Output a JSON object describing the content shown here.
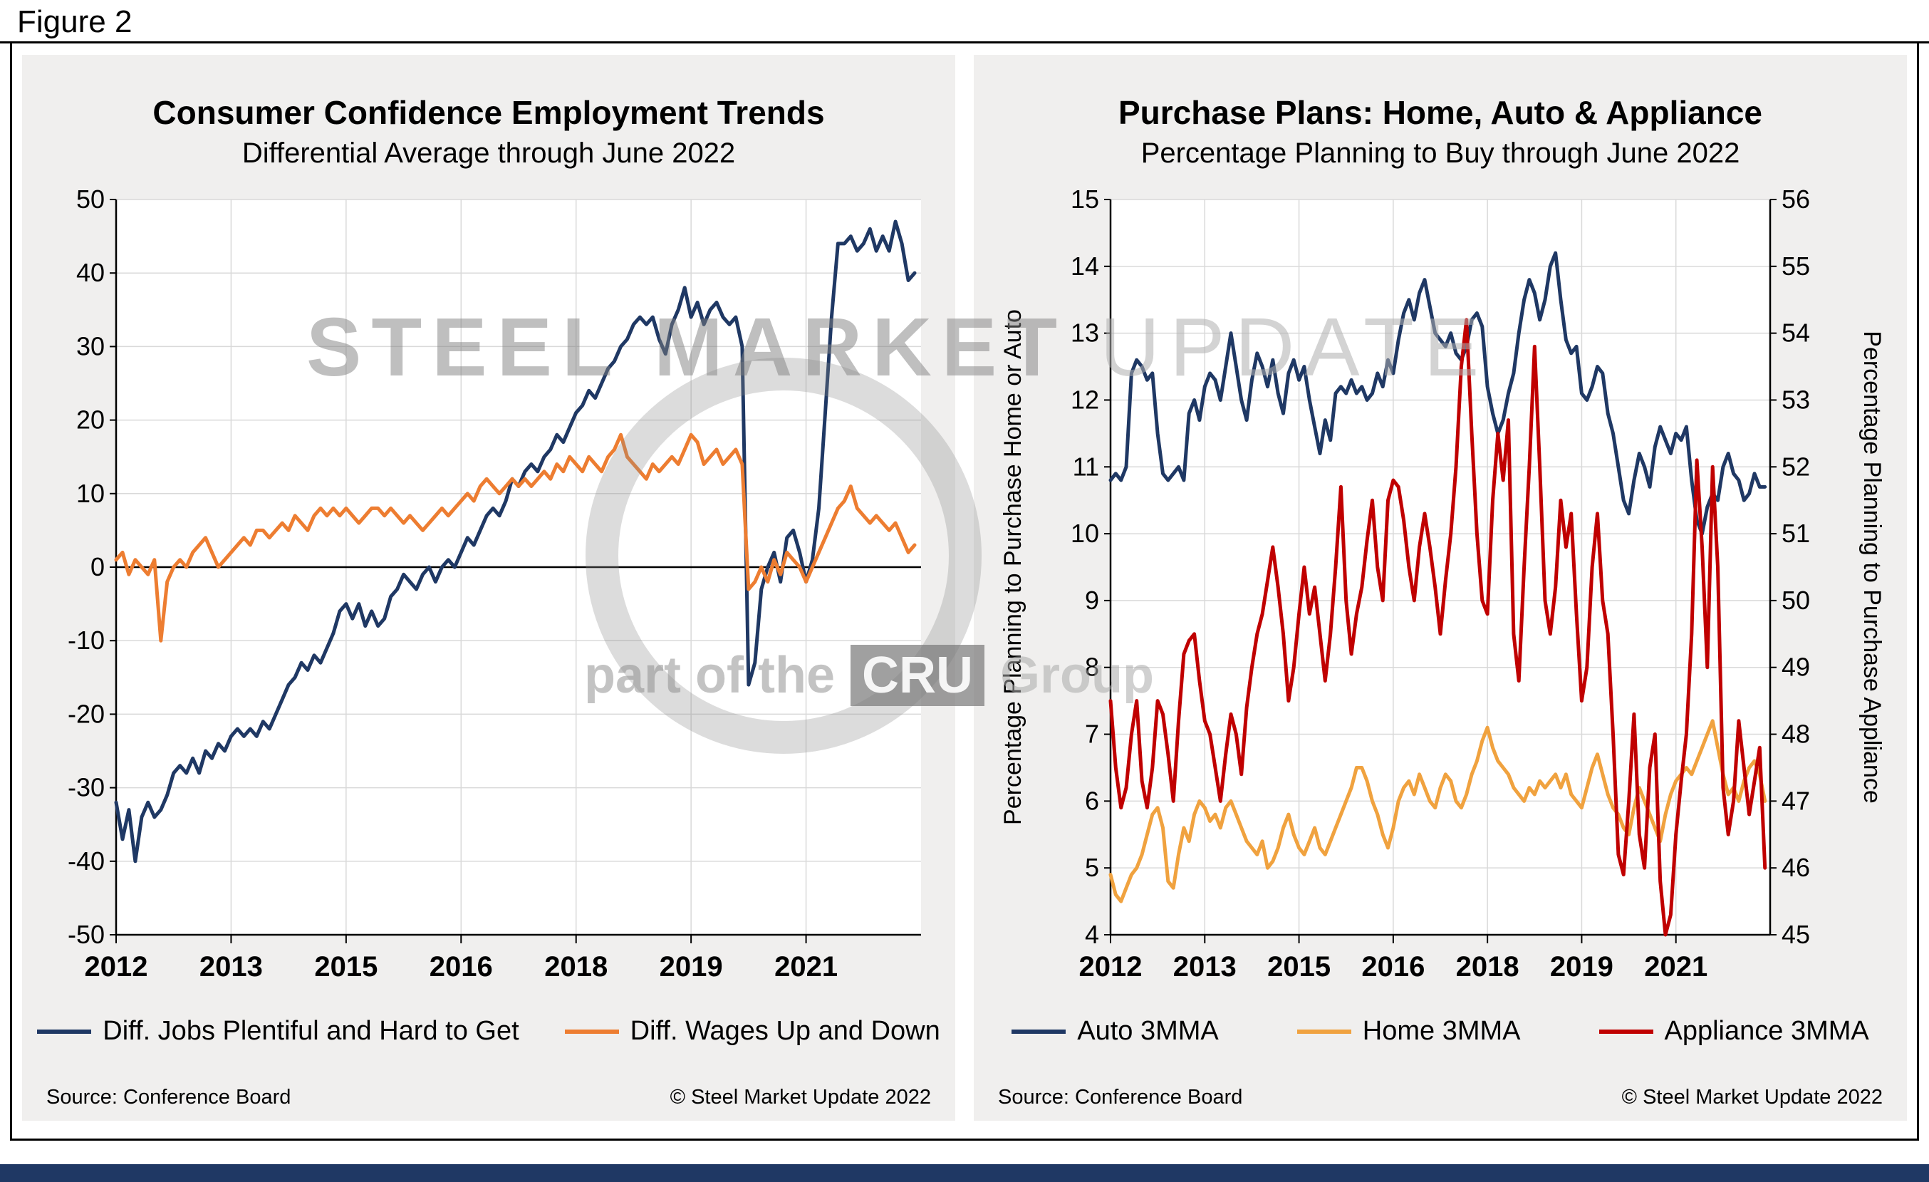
{
  "figure_label": "Figure 2",
  "footer_bar_color": "#1F3864",
  "watermark": {
    "text_bold": "STEEL MARKET",
    "text_light": "UPDATE",
    "tagline_pre": "part of the",
    "tagline_box": "CRU",
    "tagline_post": "Group"
  },
  "panels": [
    {
      "source": "Source: Conference Board",
      "copyright": "© Steel Market Update 2022"
    },
    {
      "source": "Source: Conference Board",
      "copyright": "© Steel Market Update 2022"
    }
  ],
  "chart_data": [
    {
      "type": "line",
      "title": "Consumer Confidence Employment Trends",
      "subtitle": "Differential Average through June 2022",
      "x_start": 2012,
      "x_frequency": "monthly",
      "xlim": [
        2012,
        2022.5
      ],
      "xticks": [
        {
          "x": 2012,
          "label": "2012"
        },
        {
          "x": 2013.5,
          "label": "2013"
        },
        {
          "x": 2015,
          "label": "2015"
        },
        {
          "x": 2016.5,
          "label": "2016"
        },
        {
          "x": 2018,
          "label": "2018"
        },
        {
          "x": 2019.5,
          "label": "2019"
        },
        {
          "x": 2021,
          "label": "2021"
        }
      ],
      "yleft": {
        "min": -50,
        "max": 50,
        "step": 10
      },
      "zero_line": true,
      "grid": true,
      "legend_position": "bottom",
      "series": [
        {
          "name": "Diff. Jobs Plentiful and Hard to Get",
          "color": "#1F3864",
          "axis": "left",
          "values": [
            -32,
            -37,
            -33,
            -40,
            -34,
            -32,
            -34,
            -33,
            -31,
            -28,
            -27,
            -28,
            -26,
            -28,
            -25,
            -26,
            -24,
            -25,
            -23,
            -22,
            -23,
            -22,
            -23,
            -21,
            -22,
            -20,
            -18,
            -16,
            -15,
            -13,
            -14,
            -12,
            -13,
            -11,
            -9,
            -6,
            -5,
            -7,
            -5,
            -8,
            -6,
            -8,
            -7,
            -4,
            -3,
            -1,
            -2,
            -3,
            -1,
            0,
            -2,
            0,
            1,
            0,
            2,
            4,
            3,
            5,
            7,
            8,
            7,
            9,
            12,
            11,
            13,
            14,
            13,
            15,
            16,
            18,
            17,
            19,
            21,
            22,
            24,
            23,
            25,
            27,
            28,
            30,
            31,
            33,
            34,
            33,
            34,
            31,
            29,
            33,
            35,
            38,
            34,
            36,
            33,
            35,
            36,
            34,
            33,
            34,
            30,
            -16,
            -13,
            -3,
            0,
            2,
            -2,
            4,
            5,
            2,
            -2,
            1,
            8,
            21,
            34,
            44,
            44,
            45,
            43,
            44,
            46,
            43,
            45,
            43,
            47,
            44,
            39,
            40
          ]
        },
        {
          "name": "Diff. Wages Up and Down",
          "color": "#ED7D31",
          "axis": "left",
          "values": [
            1,
            2,
            -1,
            1,
            0,
            -1,
            1,
            -10,
            -2,
            0,
            1,
            0,
            2,
            3,
            4,
            2,
            0,
            1,
            2,
            3,
            4,
            3,
            5,
            5,
            4,
            5,
            6,
            5,
            7,
            6,
            5,
            7,
            8,
            7,
            8,
            7,
            8,
            7,
            6,
            7,
            8,
            8,
            7,
            8,
            7,
            6,
            7,
            6,
            5,
            6,
            7,
            8,
            7,
            8,
            9,
            10,
            9,
            11,
            12,
            11,
            10,
            11,
            12,
            11,
            12,
            11,
            12,
            13,
            12,
            14,
            13,
            15,
            14,
            13,
            15,
            14,
            13,
            15,
            16,
            18,
            15,
            14,
            13,
            12,
            14,
            13,
            14,
            15,
            14,
            16,
            18,
            17,
            14,
            15,
            16,
            14,
            15,
            16,
            14,
            -3,
            -2,
            0,
            -2,
            1,
            -1,
            2,
            1,
            0,
            -2,
            0,
            2,
            4,
            6,
            8,
            9,
            11,
            8,
            7,
            6,
            7,
            6,
            5,
            6,
            4,
            2,
            3
          ]
        }
      ]
    },
    {
      "type": "line",
      "title": "Purchase Plans: Home, Auto & Appliance",
      "subtitle": "Percentage Planning to Buy through June 2022",
      "x_start": 2012,
      "x_frequency": "monthly",
      "xlim": [
        2012,
        2022.5
      ],
      "xticks": [
        {
          "x": 2012,
          "label": "2012"
        },
        {
          "x": 2013.5,
          "label": "2013"
        },
        {
          "x": 2015,
          "label": "2015"
        },
        {
          "x": 2016.5,
          "label": "2016"
        },
        {
          "x": 2018,
          "label": "2018"
        },
        {
          "x": 2019.5,
          "label": "2019"
        },
        {
          "x": 2021,
          "label": "2021"
        }
      ],
      "yleft": {
        "min": 4,
        "max": 15,
        "step": 1
      },
      "yright": {
        "min": 45,
        "max": 56,
        "step": 1
      },
      "ylabel_left": "Percentage Planning to Purchase Home or Auto",
      "ylabel_right": "Percentage Planning to Purchase Appliance",
      "grid": true,
      "legend_position": "bottom",
      "series": [
        {
          "name": "Auto 3MMA",
          "color": "#1F3864",
          "axis": "left",
          "values": [
            10.8,
            10.9,
            10.8,
            11.0,
            12.4,
            12.6,
            12.5,
            12.3,
            12.4,
            11.5,
            10.9,
            10.8,
            10.9,
            11.0,
            10.8,
            11.8,
            12.0,
            11.7,
            12.2,
            12.4,
            12.3,
            12.0,
            12.5,
            13.0,
            12.5,
            12.0,
            11.7,
            12.3,
            12.7,
            12.5,
            12.2,
            12.6,
            12.1,
            11.8,
            12.4,
            12.6,
            12.3,
            12.5,
            12.0,
            11.6,
            11.2,
            11.7,
            11.4,
            12.1,
            12.2,
            12.1,
            12.3,
            12.1,
            12.2,
            12.0,
            12.1,
            12.4,
            12.2,
            12.6,
            12.4,
            12.9,
            13.3,
            13.5,
            13.2,
            13.6,
            13.8,
            13.4,
            13.0,
            12.9,
            12.8,
            13.0,
            12.7,
            12.6,
            12.8,
            13.2,
            13.3,
            13.1,
            12.2,
            11.8,
            11.5,
            11.7,
            12.1,
            12.4,
            13.0,
            13.5,
            13.8,
            13.6,
            13.2,
            13.5,
            14.0,
            14.2,
            13.5,
            12.9,
            12.7,
            12.8,
            12.1,
            12.0,
            12.2,
            12.5,
            12.4,
            11.8,
            11.5,
            11.0,
            10.5,
            10.3,
            10.8,
            11.2,
            11.0,
            10.7,
            11.3,
            11.6,
            11.4,
            11.2,
            11.5,
            11.4,
            11.6,
            10.8,
            10.2,
            10.0,
            10.4,
            10.6,
            10.5,
            11.0,
            11.2,
            10.9,
            10.8,
            10.5,
            10.6,
            10.9,
            10.7,
            10.7
          ]
        },
        {
          "name": "Home 3MMA",
          "color": "#F0A23F",
          "axis": "left",
          "values": [
            4.9,
            4.6,
            4.5,
            4.7,
            4.9,
            5.0,
            5.2,
            5.5,
            5.8,
            5.9,
            5.6,
            4.8,
            4.7,
            5.2,
            5.6,
            5.4,
            5.8,
            6.0,
            5.9,
            5.7,
            5.8,
            5.6,
            5.9,
            6.0,
            5.8,
            5.6,
            5.4,
            5.3,
            5.2,
            5.4,
            5.0,
            5.1,
            5.3,
            5.6,
            5.8,
            5.5,
            5.3,
            5.2,
            5.4,
            5.6,
            5.3,
            5.2,
            5.4,
            5.6,
            5.8,
            6.0,
            6.2,
            6.5,
            6.5,
            6.3,
            6.0,
            5.8,
            5.5,
            5.3,
            5.6,
            6.0,
            6.2,
            6.3,
            6.1,
            6.4,
            6.2,
            6.0,
            5.9,
            6.2,
            6.4,
            6.3,
            6.0,
            5.9,
            6.1,
            6.4,
            6.6,
            6.9,
            7.1,
            6.8,
            6.6,
            6.5,
            6.4,
            6.2,
            6.1,
            6.0,
            6.2,
            6.1,
            6.3,
            6.2,
            6.3,
            6.4,
            6.2,
            6.4,
            6.1,
            6.0,
            5.9,
            6.2,
            6.5,
            6.7,
            6.4,
            6.1,
            5.9,
            5.8,
            5.6,
            5.5,
            5.9,
            6.2,
            6.0,
            5.8,
            5.6,
            5.4,
            5.8,
            6.1,
            6.3,
            6.4,
            6.5,
            6.4,
            6.6,
            6.8,
            7.0,
            7.2,
            6.8,
            6.4,
            6.1,
            6.2,
            6.0,
            6.3,
            6.5,
            6.6,
            6.4,
            6.0
          ]
        },
        {
          "name": "Appliance 3MMA",
          "color": "#C00000",
          "axis": "right",
          "values": [
            48.5,
            47.5,
            46.9,
            47.2,
            48.0,
            48.5,
            47.3,
            46.9,
            47.5,
            48.5,
            48.3,
            47.7,
            47.0,
            48.2,
            49.2,
            49.4,
            49.5,
            48.8,
            48.2,
            48.0,
            47.5,
            47.0,
            47.7,
            48.3,
            48.0,
            47.4,
            48.4,
            49.0,
            49.5,
            49.8,
            50.3,
            50.8,
            50.2,
            49.5,
            48.5,
            49.0,
            49.8,
            50.5,
            49.8,
            50.2,
            49.5,
            48.8,
            49.5,
            50.5,
            51.7,
            50.0,
            49.2,
            49.8,
            50.2,
            50.9,
            51.5,
            50.5,
            50.0,
            51.5,
            51.8,
            51.7,
            51.2,
            50.5,
            50.0,
            50.8,
            51.3,
            50.8,
            50.2,
            49.5,
            50.3,
            51.0,
            52.0,
            53.5,
            54.2,
            52.5,
            51.0,
            50.0,
            49.8,
            51.5,
            52.5,
            51.8,
            52.7,
            49.5,
            48.8,
            50.5,
            52.0,
            53.8,
            52.0,
            50.0,
            49.5,
            50.2,
            51.5,
            50.8,
            51.3,
            49.8,
            48.5,
            49.0,
            50.5,
            51.3,
            50.0,
            49.5,
            48.0,
            46.2,
            45.9,
            47.0,
            48.3,
            46.5,
            46.0,
            47.5,
            48.0,
            45.8,
            45.0,
            45.3,
            46.5,
            47.3,
            48.0,
            49.5,
            52.1,
            50.8,
            49.0,
            52.0,
            50.5,
            47.2,
            46.5,
            47.0,
            48.2,
            47.5,
            46.8,
            47.3,
            47.8,
            46.0
          ]
        }
      ]
    }
  ]
}
